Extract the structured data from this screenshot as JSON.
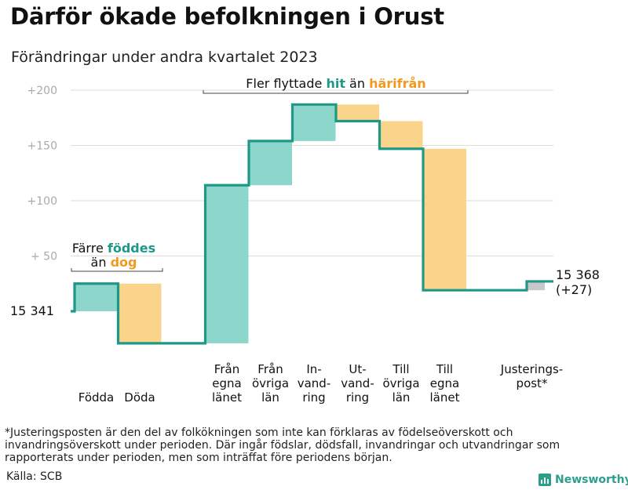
{
  "title": "Därför ökade befolkningen i Orust",
  "subtitle": "Förändringar under andra kvartalet 2023",
  "footnote": "*Justeringsposten är den del av folkökningen som inte kan förklaras av födelseöverskott och invandringsöverskott under perioden. Där ingår födslar, dödsfall, invandringar och utvandringar som rapporterats under perioden, men som inträffat före periodens början.",
  "source": "Källa: SCB",
  "brand": "Newsworthy",
  "colors": {
    "increase_fill": "#8dd6cb",
    "decrease_fill": "#fbd48c",
    "adjust_fill": "#c8c8c8",
    "line": "#1f9887",
    "teal_text": "#1f9887",
    "orange_text": "#f29a1f",
    "grid": "#dddddd",
    "tick_text": "#aaaaaa"
  },
  "chart_data": {
    "type": "waterfall",
    "baseline": 15341,
    "ylim": [
      -32,
      210
    ],
    "yticks": [
      {
        "value": 50,
        "label": "+  50"
      },
      {
        "value": 100,
        "label": "+100"
      },
      {
        "value": 150,
        "label": "+150"
      },
      {
        "value": 200,
        "label": "+200"
      }
    ],
    "start_label": "15  341",
    "end_label_lines": [
      "15 368",
      "(+27)"
    ],
    "steps": [
      {
        "label_lines": [
          "Födda"
        ],
        "from": 0,
        "to": 25,
        "kind": "increase"
      },
      {
        "label_lines": [
          "Döda"
        ],
        "from": 25,
        "to": -29,
        "kind": "decrease"
      },
      {
        "label_lines": [
          "Från",
          "egna",
          "länet"
        ],
        "from": -29,
        "to": 114,
        "kind": "increase"
      },
      {
        "label_lines": [
          "Från",
          "övriga",
          "län"
        ],
        "from": 114,
        "to": 154,
        "kind": "increase"
      },
      {
        "label_lines": [
          "In-",
          "vand-",
          "ring"
        ],
        "from": 154,
        "to": 187,
        "kind": "increase"
      },
      {
        "label_lines": [
          "Ut-",
          "vand-",
          "ring"
        ],
        "from": 187,
        "to": 172,
        "kind": "decrease"
      },
      {
        "label_lines": [
          "Till",
          "övriga",
          "län"
        ],
        "from": 172,
        "to": 147,
        "kind": "decrease"
      },
      {
        "label_lines": [
          "Till",
          "egna",
          "länet"
        ],
        "from": 147,
        "to": 19,
        "kind": "decrease"
      },
      {
        "label_lines": [
          "Justerings-",
          "post*"
        ],
        "from": 19,
        "to": 27,
        "kind": "adjust"
      }
    ],
    "annotations": {
      "left": {
        "prefix": "Färre ",
        "highlight1": "föddes",
        "line2_prefix": "än ",
        "highlight2": "dog"
      },
      "top": {
        "prefix": "Fler flyttade ",
        "highlight1": "hit",
        "middle": " än ",
        "highlight2": "härifrån"
      }
    }
  }
}
